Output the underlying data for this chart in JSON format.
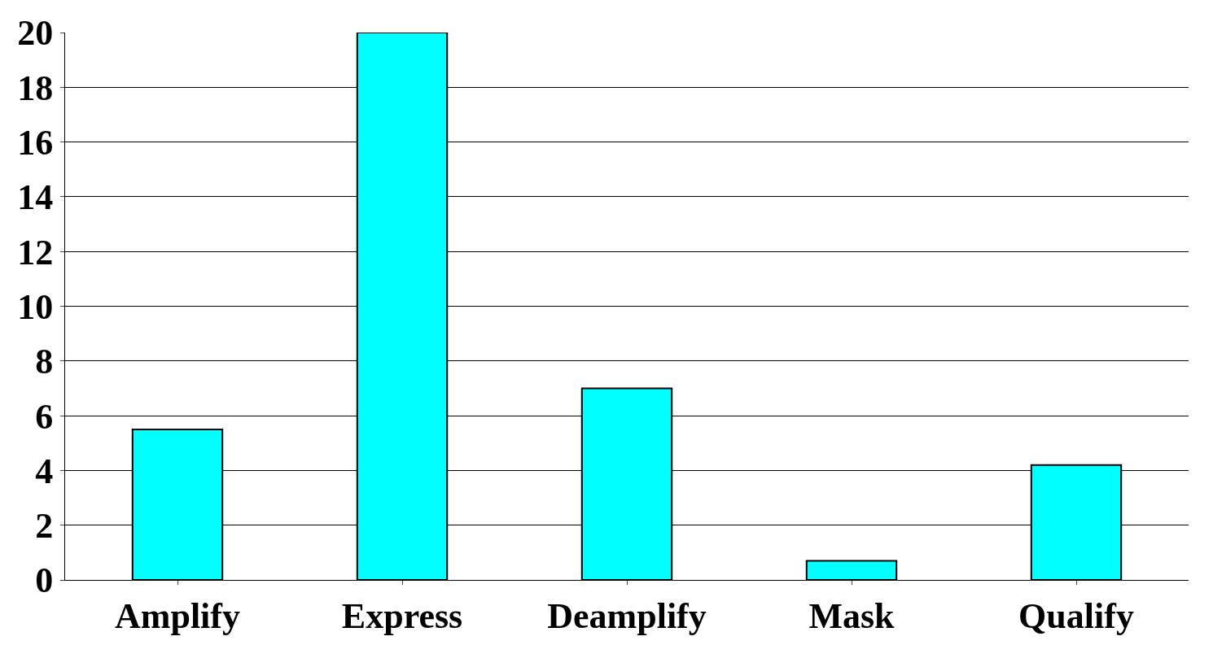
{
  "chart_data": {
    "type": "bar",
    "categories": [
      "Amplify",
      "Express",
      "Deamplify",
      "Mask",
      "Qualify"
    ],
    "values": [
      5.5,
      20,
      7,
      0.7,
      4.2
    ],
    "color": "#00ffff",
    "ylim": [
      0,
      20
    ],
    "yticks": [
      0,
      2,
      4,
      6,
      8,
      10,
      12,
      14,
      16,
      18,
      20
    ],
    "grid": "y"
  }
}
